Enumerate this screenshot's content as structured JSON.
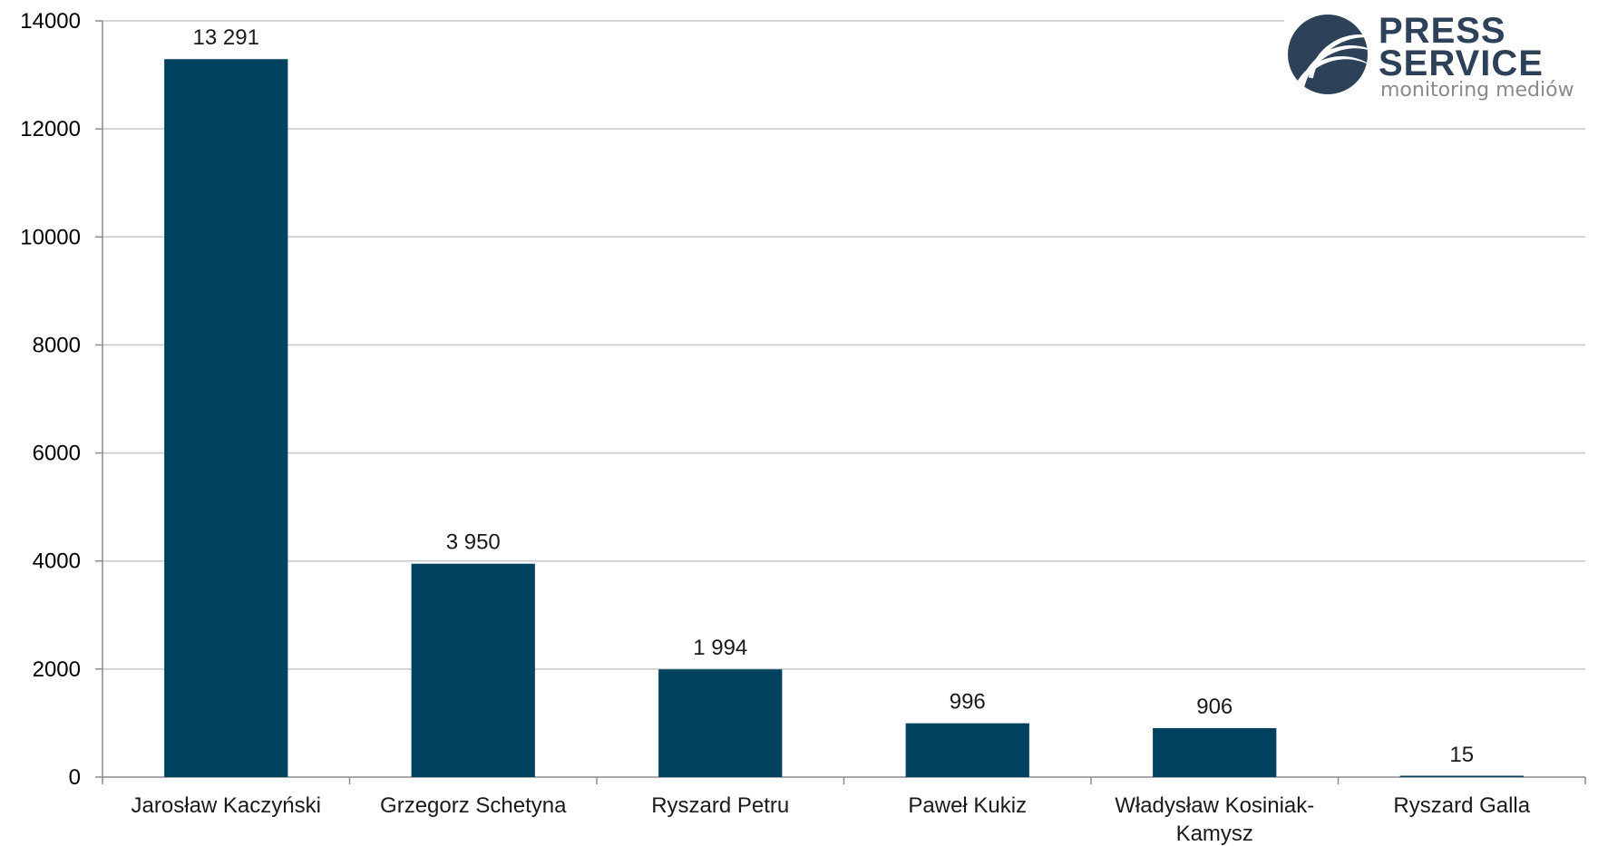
{
  "chart_data": {
    "type": "bar",
    "categories": [
      [
        "Jarosław Kaczyński"
      ],
      [
        "Grzegorz Schetyna"
      ],
      [
        "Ryszard Petru"
      ],
      [
        "Paweł Kukiz"
      ],
      [
        "Władysław Kosiniak-",
        "Kamysz"
      ],
      [
        "Ryszard Galla"
      ]
    ],
    "values": [
      13291,
      3950,
      1994,
      996,
      906,
      15
    ],
    "data_labels": [
      "13 291",
      "3 950",
      "1 994",
      "996",
      "906",
      "15"
    ],
    "yticks": [
      "0",
      "2000",
      "4000",
      "6000",
      "8000",
      "10000",
      "12000",
      "14000"
    ],
    "ylim": [
      0,
      14000
    ],
    "grid": true,
    "bar_color": "#00415f",
    "grid_color": "#c8c8c8"
  },
  "logo": {
    "line1": "PRESS",
    "line2": "SERVICE",
    "tagline": "monitoring mediów",
    "color": "#2d4258"
  }
}
